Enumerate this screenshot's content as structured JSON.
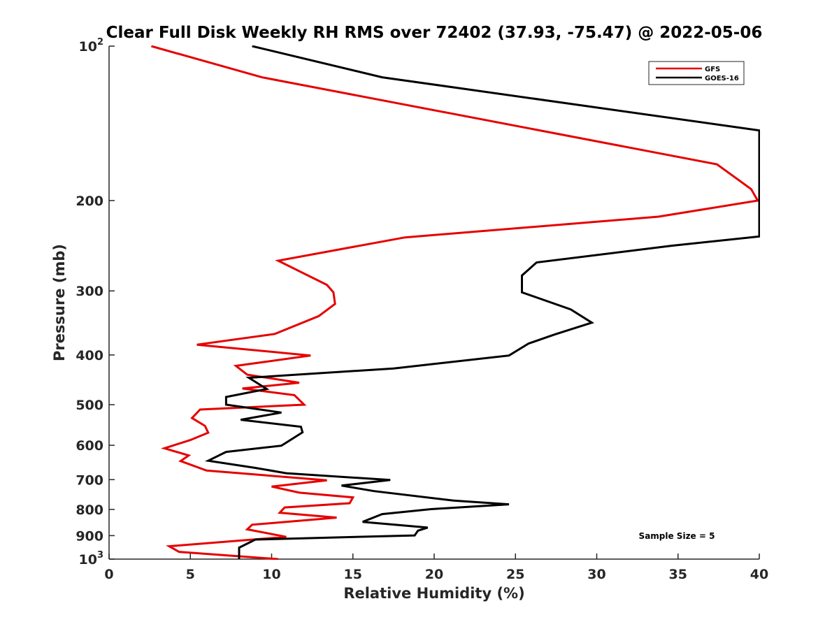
{
  "chart_data": {
    "type": "line",
    "title": "Clear Full Disk Weekly RH RMS over 72402 (37.93, -75.47) @ 2022-05-06",
    "xlabel": "Relative Humidity (%)",
    "ylabel": "Pressure (mb)",
    "xlim": [
      0,
      40
    ],
    "ylim": [
      100,
      1000
    ],
    "yscale": "log",
    "y_reversed": true,
    "x_ticks": [
      0,
      5,
      10,
      15,
      20,
      25,
      30,
      35,
      40
    ],
    "x_tick_labels": [
      "0",
      "5",
      "10",
      "15",
      "20",
      "25",
      "30",
      "35",
      "40"
    ],
    "y_ticks": [
      100,
      200,
      300,
      400,
      500,
      600,
      700,
      800,
      900,
      1000
    ],
    "y_tick_labels": [
      {
        "base": "10",
        "exp": "2"
      },
      {
        "base": "200",
        "exp": ""
      },
      {
        "base": "300",
        "exp": ""
      },
      {
        "base": "400",
        "exp": ""
      },
      {
        "base": "500",
        "exp": ""
      },
      {
        "base": "600",
        "exp": ""
      },
      {
        "base": "700",
        "exp": ""
      },
      {
        "base": "800",
        "exp": ""
      },
      {
        "base": "900",
        "exp": ""
      },
      {
        "base": "10",
        "exp": "3"
      }
    ],
    "legend_position": "top-right",
    "annotation": "Sample Size = 5",
    "series": [
      {
        "name": "GFS",
        "color": "#e60000",
        "points": [
          [
            2.6,
            100
          ],
          [
            9.4,
            115
          ],
          [
            37.4,
            170
          ],
          [
            39.5,
            190
          ],
          [
            39.9,
            200
          ],
          [
            33.8,
            215
          ],
          [
            18.2,
            236
          ],
          [
            10.4,
            262
          ],
          [
            13.4,
            292
          ],
          [
            13.8,
            302
          ],
          [
            13.9,
            318
          ],
          [
            12.9,
            336
          ],
          [
            10.2,
            364
          ],
          [
            5.4,
            382
          ],
          [
            12.4,
            401
          ],
          [
            7.8,
            420
          ],
          [
            8.5,
            437
          ],
          [
            11.7,
            453
          ],
          [
            8.2,
            465
          ],
          [
            11.4,
            479
          ],
          [
            12.0,
            500
          ],
          [
            5.6,
            511
          ],
          [
            5.1,
            531
          ],
          [
            5.9,
            550
          ],
          [
            6.1,
            567
          ],
          [
            5.0,
            586
          ],
          [
            3.4,
            608
          ],
          [
            4.9,
            628
          ],
          [
            4.4,
            644
          ],
          [
            6.0,
            672
          ],
          [
            13.4,
            702
          ],
          [
            10.0,
            722
          ],
          [
            11.7,
            742
          ],
          [
            15.0,
            758
          ],
          [
            14.8,
            778
          ],
          [
            10.8,
            793
          ],
          [
            10.5,
            812
          ],
          [
            14.0,
            830
          ],
          [
            8.8,
            857
          ],
          [
            8.5,
            875
          ],
          [
            10.9,
            905
          ],
          [
            3.7,
            944
          ],
          [
            4.3,
            968
          ],
          [
            10.4,
            1000
          ]
        ]
      },
      {
        "name": "GOES-16",
        "color": "#000000",
        "points": [
          [
            8.8,
            100
          ],
          [
            16.8,
            115
          ],
          [
            40.0,
            146
          ],
          [
            40.0,
            235
          ],
          [
            34.6,
            245
          ],
          [
            26.3,
            264
          ],
          [
            25.4,
            280
          ],
          [
            25.4,
            302
          ],
          [
            28.4,
            326
          ],
          [
            29.7,
            346
          ],
          [
            27.4,
            365
          ],
          [
            25.8,
            380
          ],
          [
            24.6,
            401
          ],
          [
            17.5,
            425
          ],
          [
            8.6,
            443
          ],
          [
            9.7,
            466
          ],
          [
            7.2,
            483
          ],
          [
            7.2,
            500
          ],
          [
            10.6,
            518
          ],
          [
            8.1,
            535
          ],
          [
            11.8,
            552
          ],
          [
            11.9,
            566
          ],
          [
            10.6,
            601
          ],
          [
            7.2,
            618
          ],
          [
            6.1,
            643
          ],
          [
            9.0,
            664
          ],
          [
            10.9,
            680
          ],
          [
            17.3,
            701
          ],
          [
            14.3,
            719
          ],
          [
            16.3,
            737
          ],
          [
            21.2,
            769
          ],
          [
            24.6,
            782
          ],
          [
            19.8,
            799
          ],
          [
            16.8,
            817
          ],
          [
            15.6,
            846
          ],
          [
            19.6,
            868
          ],
          [
            19.0,
            880
          ],
          [
            18.8,
            899
          ],
          [
            9.0,
            916
          ],
          [
            8.0,
            950
          ],
          [
            8.0,
            1000
          ]
        ]
      }
    ]
  }
}
